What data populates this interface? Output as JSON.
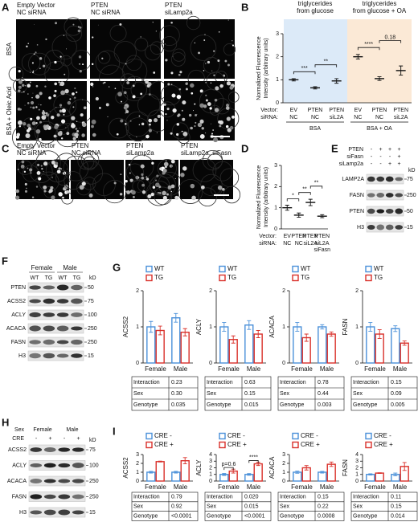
{
  "figure": {
    "A": {
      "letter": "A",
      "columns": [
        [
          "Empty Vector",
          "NC siRNA"
        ],
        [
          "PTEN",
          "NC siRNA"
        ],
        [
          "PTEN",
          "siLamp2a"
        ]
      ],
      "rows": [
        "BSA",
        "BSA + Oleic Acid"
      ]
    },
    "B": {
      "letter": "B",
      "headers": [
        [
          "triglycerides",
          "from glucose"
        ],
        [
          "triglycerides",
          "from glucose + OA"
        ]
      ],
      "ylabel": [
        "Normalized Fluorescence",
        "Intensity (arbitrary units)"
      ],
      "ylim": [
        0,
        3
      ],
      "yticks": [
        0,
        1,
        2,
        3
      ],
      "row_labels": [
        "Vector:",
        "siRNA:"
      ],
      "vector": [
        "EV",
        "PTEN",
        "PTEN",
        "EV",
        "PTEN",
        "PTEN"
      ],
      "sirna": [
        "NC",
        "NC",
        "siL2A",
        "NC",
        "NC",
        "siL2A"
      ],
      "groups": [
        "BSA",
        "BSA + OA"
      ],
      "values": [
        1.0,
        0.65,
        0.95,
        2.0,
        1.05,
        1.4
      ],
      "errors": [
        0.05,
        0.05,
        0.1,
        0.1,
        0.08,
        0.2
      ],
      "significance": [
        "***",
        "**",
        "****",
        "0.18"
      ],
      "colors": [
        "#dceaf8",
        "#fbe9d6"
      ]
    },
    "C": {
      "letter": "C",
      "columns": [
        [
          "Empty Vector",
          "NC siRNA"
        ],
        [
          "PTEN",
          "NC siRNA"
        ],
        [
          "PTEN",
          "siLamp2a"
        ],
        [
          "PTEN",
          "siLamp2a, siFasn"
        ]
      ]
    },
    "D": {
      "letter": "D",
      "ylabel": [
        "Normalized Fluorescence",
        "Intensity (arbitrary units)"
      ],
      "ylim": [
        0,
        3
      ],
      "yticks": [
        0,
        1,
        2,
        3
      ],
      "row_labels": [
        "Vector:",
        "siRNA:"
      ],
      "vector": [
        "EV",
        "PTEN",
        "PTEN",
        "PTEN"
      ],
      "sirna": [
        [
          "NC"
        ],
        [
          "NC"
        ],
        [
          "siL2A"
        ],
        [
          "siL2A",
          "siFasn"
        ]
      ],
      "values": [
        1.0,
        0.65,
        1.25,
        0.6
      ],
      "errors": [
        0.12,
        0.1,
        0.15,
        0.07
      ],
      "significance": [
        "*",
        "**",
        "**"
      ]
    },
    "E": {
      "letter": "E",
      "conditions": [
        {
          "name": "PTEN",
          "signs": [
            "-",
            "+",
            "+",
            "+"
          ]
        },
        {
          "name": "siFasn",
          "signs": [
            "-",
            "-",
            "-",
            "+"
          ]
        },
        {
          "name": "siLamp2a",
          "signs": [
            "-",
            "-",
            "+",
            "+"
          ]
        }
      ],
      "unit": "kD",
      "proteins": [
        "LAMP2A",
        "FASN",
        "PTEN",
        "H3"
      ],
      "markers": [
        "75",
        "250",
        "50",
        "15"
      ]
    },
    "F": {
      "letter": "F",
      "groups": [
        "Female",
        "Male"
      ],
      "lanes": [
        "WT",
        "TG",
        "WT",
        "TG"
      ],
      "unit": "kD",
      "proteins": [
        "PTEN",
        "ACSS2",
        "ACLY",
        "ACACA",
        "FASN",
        "H3"
      ],
      "markers": [
        "50",
        "75",
        "100",
        "250",
        "250",
        "15"
      ]
    },
    "G": {
      "letter": "G",
      "charts": [
        {
          "ylabel": "ACSS2",
          "ylim": [
            0,
            2
          ],
          "yticks": [
            0,
            1,
            2
          ],
          "categories": [
            "Female",
            "Male"
          ],
          "series": [
            {
              "name": "WT",
              "color": "#4a90d9",
              "values": [
                1.0,
                1.25
              ],
              "errors": [
                0.15,
                0.12
              ]
            },
            {
              "name": "TG",
              "color": "#d9302a",
              "values": [
                0.9,
                0.85
              ],
              "errors": [
                0.12,
                0.1
              ]
            }
          ],
          "table": [
            [
              "Interaction",
              "0.23"
            ],
            [
              "Sex",
              "0.30"
            ],
            [
              "Genotype",
              "0.035"
            ]
          ]
        },
        {
          "ylabel": "ACLY",
          "ylim": [
            0,
            2
          ],
          "yticks": [
            0,
            1,
            2
          ],
          "categories": [
            "Female",
            "Male"
          ],
          "series": [
            {
              "name": "WT",
              "color": "#4a90d9",
              "values": [
                1.0,
                1.05
              ],
              "errors": [
                0.12,
                0.12
              ]
            },
            {
              "name": "TG",
              "color": "#d9302a",
              "values": [
                0.65,
                0.8
              ],
              "errors": [
                0.1,
                0.1
              ]
            }
          ],
          "table": [
            [
              "Interaction",
              "0.63"
            ],
            [
              "Sex",
              "0.15"
            ],
            [
              "Genotype",
              "0.015"
            ]
          ]
        },
        {
          "ylabel": "ACACA",
          "ylim": [
            0,
            2
          ],
          "yticks": [
            0,
            1,
            2
          ],
          "categories": [
            "Female",
            "Male"
          ],
          "series": [
            {
              "name": "WT",
              "color": "#4a90d9",
              "values": [
                1.0,
                1.0
              ],
              "errors": [
                0.12,
                0.06
              ]
            },
            {
              "name": "TG",
              "color": "#d9302a",
              "values": [
                0.7,
                0.8
              ],
              "errors": [
                0.1,
                0.06
              ]
            }
          ],
          "table": [
            [
              "Interaction",
              "0.78"
            ],
            [
              "Sex",
              "0.44"
            ],
            [
              "Genotype",
              "0.003"
            ]
          ]
        },
        {
          "ylabel": "FASN",
          "ylim": [
            0,
            2
          ],
          "yticks": [
            0,
            1,
            2
          ],
          "categories": [
            "Female",
            "Male"
          ],
          "series": [
            {
              "name": "WT",
              "color": "#4a90d9",
              "values": [
                1.0,
                0.95
              ],
              "errors": [
                0.12,
                0.08
              ]
            },
            {
              "name": "TG",
              "color": "#d9302a",
              "values": [
                0.8,
                0.55
              ],
              "errors": [
                0.12,
                0.06
              ]
            }
          ],
          "table": [
            [
              "Interaction",
              "0.15"
            ],
            [
              "Sex",
              "0.09"
            ],
            [
              "Genotype",
              "0.005"
            ]
          ]
        }
      ]
    },
    "H": {
      "letter": "H",
      "rows": [
        {
          "name": "Sex",
          "labels": [
            "Female",
            "Male"
          ]
        },
        {
          "name": "CRE",
          "labels": [
            "-",
            "+",
            "-",
            "+"
          ]
        }
      ],
      "unit": "kD",
      "proteins": [
        "ACSS2",
        "ACLY",
        "ACACA",
        "FASN",
        "H3"
      ],
      "markers": [
        "75",
        "100",
        "250",
        "250",
        "15"
      ]
    },
    "I": {
      "letter": "I",
      "charts": [
        {
          "ylabel": "ACSS2",
          "ylim": [
            0,
            3
          ],
          "yticks": [
            0,
            1,
            2,
            3
          ],
          "categories": [
            "Female",
            "Male"
          ],
          "series": [
            {
              "name": "CRE -",
              "color": "#4a90d9",
              "values": [
                1.0,
                1.0
              ],
              "errors": [
                0.1,
                0.1
              ]
            },
            {
              "name": "CRE +",
              "color": "#d9302a",
              "values": [
                2.2,
                2.3
              ],
              "errors": [
                0.05,
                0.35
              ]
            }
          ],
          "table": [
            [
              "Interaction",
              "0.79"
            ],
            [
              "Sex",
              "0.92"
            ],
            [
              "Genotype",
              "<0.0001"
            ]
          ]
        },
        {
          "ylabel": "ACLY",
          "ylim": [
            0,
            4
          ],
          "yticks": [
            0,
            1,
            2,
            3,
            4
          ],
          "categories": [
            "Female",
            "Male"
          ],
          "series": [
            {
              "name": "CRE -",
              "color": "#4a90d9",
              "values": [
                1.0,
                1.0
              ],
              "errors": [
                0.15,
                0.12
              ]
            },
            {
              "name": "CRE +",
              "color": "#d9302a",
              "values": [
                1.5,
                2.6
              ],
              "errors": [
                0.3,
                0.25
              ]
            }
          ],
          "table": [
            [
              "Interaction",
              "0.020"
            ],
            [
              "Sex",
              "0.015"
            ],
            [
              "Genotype",
              "<0.0001"
            ]
          ],
          "significance": [
            "p=0.6",
            "****"
          ]
        },
        {
          "ylabel": "ACACA",
          "ylim": [
            0,
            3
          ],
          "yticks": [
            0,
            1,
            2,
            3
          ],
          "categories": [
            "Female",
            "Male"
          ],
          "series": [
            {
              "name": "CRE -",
              "color": "#4a90d9",
              "values": [
                1.0,
                1.0
              ],
              "errors": [
                0.12,
                0.1
              ]
            },
            {
              "name": "CRE +",
              "color": "#d9302a",
              "values": [
                1.5,
                1.9
              ],
              "errors": [
                0.25,
                0.25
              ]
            }
          ],
          "table": [
            [
              "Interaction",
              "0.15"
            ],
            [
              "Sex",
              "0.22"
            ],
            [
              "Genotype",
              "0.0008"
            ]
          ]
        },
        {
          "ylabel": "FASN",
          "ylim": [
            0,
            4
          ],
          "yticks": [
            0,
            1,
            2,
            3,
            4
          ],
          "categories": [
            "Female",
            "Male"
          ],
          "series": [
            {
              "name": "CRE -",
              "color": "#4a90d9",
              "values": [
                1.0,
                1.0
              ],
              "errors": [
                0.1,
                0.2
              ]
            },
            {
              "name": "CRE +",
              "color": "#d9302a",
              "values": [
                1.2,
                2.2
              ],
              "errors": [
                0.05,
                0.6
              ]
            }
          ],
          "table": [
            [
              "Interaction",
              "0.11"
            ],
            [
              "Sex",
              "0.15"
            ],
            [
              "Genotype",
              "0.014"
            ]
          ]
        }
      ]
    }
  }
}
